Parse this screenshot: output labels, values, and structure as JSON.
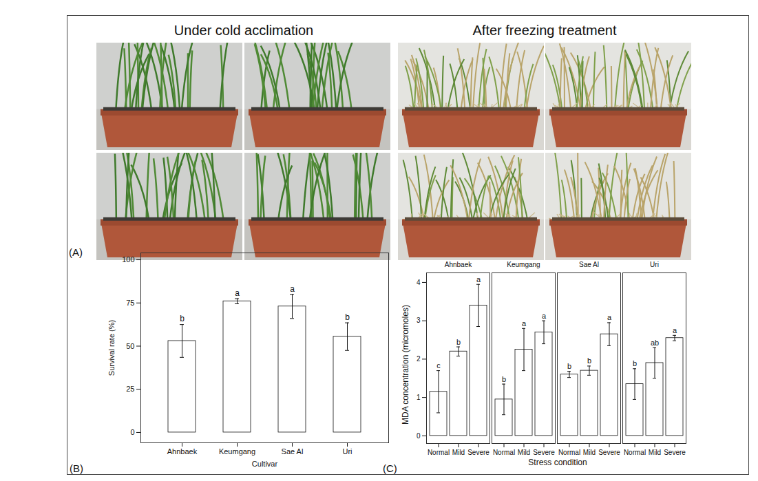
{
  "panel_a": {
    "label": "(A)",
    "titles": [
      "Under cold acclimation",
      "After freezing treatment"
    ]
  },
  "chart_data": [
    {
      "type": "bar",
      "panel_label": "(B)",
      "x_label": "Cultivar",
      "y_label": "Survival rate (%)",
      "categories": [
        "Ahnbaek",
        "Keumgang",
        "Sae Al",
        "Uri"
      ],
      "values": [
        53,
        76,
        73,
        55.5
      ],
      "error": [
        9.5,
        1.5,
        7,
        8
      ],
      "letters": [
        "b",
        "a",
        "a",
        "b"
      ],
      "color": "#ffffff",
      "ylim": [
        -6,
        104
      ],
      "yticks": [
        0,
        25,
        50,
        75,
        100
      ]
    },
    {
      "type": "bar",
      "panel_label": "(C)",
      "x_label": "Stress condition",
      "y_label": "MDA concentration (micromoles)",
      "categories": [
        "Normal",
        "Mild",
        "Severe"
      ],
      "series": [
        {
          "name": "Ahnbaek",
          "values": [
            1.15,
            2.2,
            3.4
          ],
          "error": [
            0.55,
            0.12,
            0.55
          ],
          "letters": [
            "c",
            "b",
            "a"
          ]
        },
        {
          "name": "Keumgang",
          "values": [
            0.95,
            2.25,
            2.7
          ],
          "error": [
            0.4,
            0.55,
            0.3
          ],
          "letters": [
            "b",
            "a",
            "a"
          ]
        },
        {
          "name": "Sae Al",
          "values": [
            1.6,
            1.7,
            2.65
          ],
          "error": [
            0.08,
            0.12,
            0.3
          ],
          "letters": [
            "b",
            "b",
            "a"
          ]
        },
        {
          "name": "Uri",
          "values": [
            1.35,
            1.9,
            2.55
          ],
          "error": [
            0.4,
            0.4,
            0.07
          ],
          "letters": [
            "b",
            "ab",
            "a"
          ]
        }
      ],
      "color": "#ffffff",
      "ylim": [
        -0.2,
        4.25
      ],
      "yticks": [
        0,
        1,
        2,
        3,
        4
      ]
    }
  ]
}
